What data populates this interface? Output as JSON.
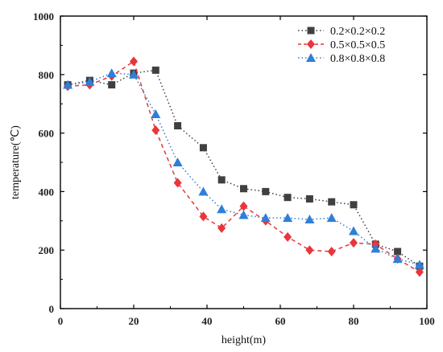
{
  "chart_data": {
    "type": "scatter",
    "xlabel": "height(m)",
    "ylabel": "temperature(℃)",
    "xlim": [
      0,
      100
    ],
    "ylim": [
      0,
      1000
    ],
    "xticks": [
      0,
      20,
      40,
      60,
      80,
      100
    ],
    "yticks": [
      0,
      200,
      400,
      600,
      800,
      1000
    ],
    "grid": false,
    "legend_position": "top-right",
    "series": [
      {
        "name": "0.2×0.2×0.2",
        "color": "#404040",
        "marker": "square",
        "line": "dotted",
        "x": [
          2,
          8,
          14,
          20,
          26,
          32,
          39,
          44,
          50,
          56,
          62,
          68,
          74,
          80,
          86,
          92,
          98
        ],
        "y": [
          765,
          780,
          765,
          805,
          815,
          625,
          550,
          440,
          410,
          400,
          380,
          375,
          365,
          355,
          220,
          195,
          145
        ]
      },
      {
        "name": "0.5×0.5×0.5",
        "color": "#e8363c",
        "marker": "diamond",
        "line": "dashed",
        "x": [
          2,
          8,
          14,
          20,
          26,
          32,
          39,
          44,
          50,
          56,
          62,
          68,
          74,
          80,
          86,
          92,
          98
        ],
        "y": [
          760,
          765,
          795,
          845,
          610,
          430,
          315,
          275,
          350,
          300,
          245,
          200,
          195,
          225,
          220,
          170,
          125
        ]
      },
      {
        "name": "0.8×0.8×0.8",
        "color": "#2f7fd8",
        "marker": "triangle",
        "line": "dotted",
        "x": [
          2,
          8,
          14,
          20,
          26,
          32,
          39,
          44,
          50,
          56,
          62,
          68,
          74,
          80,
          86,
          92,
          98
        ],
        "y": [
          765,
          775,
          805,
          800,
          665,
          500,
          400,
          340,
          320,
          310,
          310,
          305,
          310,
          265,
          205,
          170,
          150
        ]
      }
    ]
  }
}
